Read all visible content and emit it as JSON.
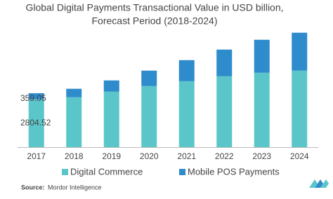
{
  "chart_data": {
    "type": "stacked_bar",
    "title": [
      "Global Digital Payments Transactional Value in USD billion,",
      "Forecast Period (2018-2024)"
    ],
    "categories": [
      "2017",
      "2018",
      "2019",
      "2020",
      "2021",
      "2022",
      "2023",
      "2024"
    ],
    "series": [
      {
        "name": "Digital Commerce",
        "color": "#5bc6c9",
        "values": [
          2804.52,
          2930,
          3255,
          3585,
          3870,
          4160,
          4365,
          4490
        ],
        "value_labels": [
          "2804.52",
          null,
          null,
          null,
          null,
          null,
          null,
          null
        ]
      },
      {
        "name": "Mobile POS Payments",
        "color": "#2e8bcc",
        "values": [
          359.05,
          495,
          660,
          905,
          1235,
          1565,
          1935,
          2225
        ],
        "value_labels": [
          "359.05",
          null,
          null,
          null,
          null,
          null,
          null,
          null
        ]
      }
    ],
    "ylim": [
      0,
      7400
    ],
    "source_label": "Source:",
    "source": "Mordor Intelligence"
  }
}
